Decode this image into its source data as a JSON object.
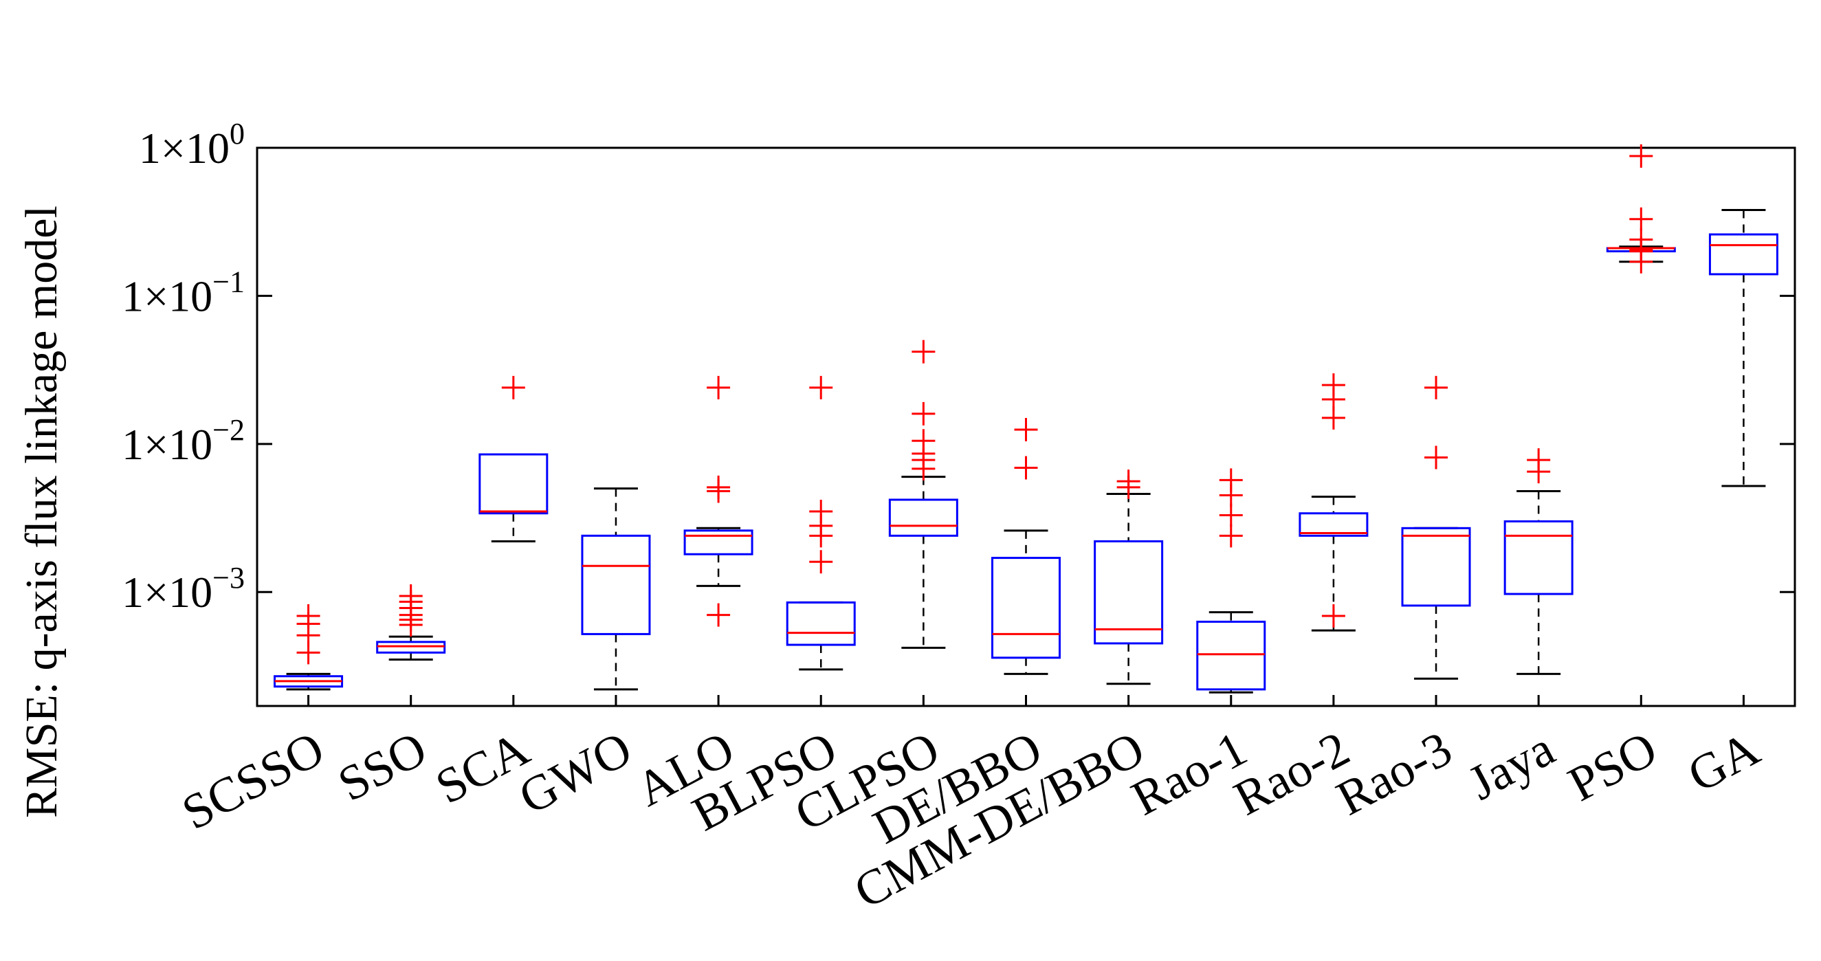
{
  "chart_data": {
    "type": "boxplot",
    "ylabel": "RMSE:   q-axis flux linkage model",
    "yscale": "log",
    "ylim": [
      0.00017,
      1.0
    ],
    "yticks": [
      {
        "value": 0.001,
        "base": "1×10",
        "exp": "−3"
      },
      {
        "value": 0.01,
        "base": "1×10",
        "exp": "−2"
      },
      {
        "value": 0.1,
        "base": "1×10",
        "exp": "−1"
      },
      {
        "value": 1.0,
        "base": "1×10",
        "exp": "0"
      }
    ],
    "colors": {
      "box": "#0000ff",
      "median": "#ff0000",
      "whisker": "#000000",
      "outlier": "#ff0000",
      "axis": "#000000"
    },
    "categories": [
      "SCSSO",
      "SSO",
      "SCA",
      "GWO",
      "ALO",
      "BLPSO",
      "CLPSO",
      "DE/BBO",
      "CMM-DE/BBO",
      "Rao-1",
      "Rao-2",
      "Rao-3",
      "Jaya",
      "PSO",
      "GA"
    ],
    "boxes": [
      {
        "name": "SCSSO",
        "low": 0.00022,
        "q1": 0.00023,
        "median": 0.00025,
        "q3": 0.00027,
        "high": 0.00028,
        "outliers": [
          0.00039,
          0.00051,
          0.00061,
          0.00069
        ]
      },
      {
        "name": "SSO",
        "low": 0.00035,
        "q1": 0.00039,
        "median": 0.00043,
        "q3": 0.00046,
        "high": 0.0005,
        "outliers": [
          0.0006,
          0.00065,
          0.0007,
          0.00078,
          0.00086,
          0.00094
        ]
      },
      {
        "name": "SCA",
        "low": 0.0022,
        "q1": 0.0034,
        "median": 0.0035,
        "q3": 0.0085,
        "high": 0.0085,
        "outliers": [
          0.024
        ]
      },
      {
        "name": "GWO",
        "low": 0.00022,
        "q1": 0.00052,
        "median": 0.0015,
        "q3": 0.0024,
        "high": 0.005,
        "outliers": []
      },
      {
        "name": "ALO",
        "low": 0.0011,
        "q1": 0.0018,
        "median": 0.0024,
        "q3": 0.0026,
        "high": 0.0027,
        "outliers": [
          0.0007,
          0.0048,
          0.0051,
          0.024
        ]
      },
      {
        "name": "BLPSO",
        "low": 0.0003,
        "q1": 0.00044,
        "median": 0.00053,
        "q3": 0.00085,
        "high": 0.00085,
        "outliers": [
          0.0016,
          0.0024,
          0.0028,
          0.0035,
          0.024
        ]
      },
      {
        "name": "CLPSO",
        "low": 0.00042,
        "q1": 0.0024,
        "median": 0.0028,
        "q3": 0.0042,
        "high": 0.006,
        "outliers": [
          0.0068,
          0.0078,
          0.0086,
          0.0105,
          0.016,
          0.042
        ]
      },
      {
        "name": "DE/BBO",
        "low": 0.00028,
        "q1": 0.00036,
        "median": 0.00052,
        "q3": 0.0017,
        "high": 0.0026,
        "outliers": [
          0.0069,
          0.0125
        ]
      },
      {
        "name": "CMM-DE/BBO",
        "low": 0.00024,
        "q1": 0.00045,
        "median": 0.00056,
        "q3": 0.0022,
        "high": 0.0046,
        "outliers": [
          0.0051,
          0.0056
        ]
      },
      {
        "name": "Rao-1",
        "low": 0.00021,
        "q1": 0.00022,
        "median": 0.00038,
        "q3": 0.00063,
        "high": 0.00073,
        "outliers": [
          0.0024,
          0.0033,
          0.0045,
          0.0057
        ]
      },
      {
        "name": "Rao-2",
        "low": 0.00055,
        "q1": 0.0024,
        "median": 0.0025,
        "q3": 0.0034,
        "high": 0.0044,
        "outliers": [
          0.00069,
          0.015,
          0.02,
          0.025
        ]
      },
      {
        "name": "Rao-3",
        "low": 0.00026,
        "q1": 0.00081,
        "median": 0.0024,
        "q3": 0.0027,
        "high": 0.0027,
        "outliers": [
          0.0081,
          0.024
        ]
      },
      {
        "name": "Jaya",
        "low": 0.00028,
        "q1": 0.00097,
        "median": 0.0024,
        "q3": 0.003,
        "high": 0.0048,
        "outliers": [
          0.0065,
          0.0078
        ]
      },
      {
        "name": "PSO",
        "low": 0.17,
        "q1": 0.2,
        "median": 0.21,
        "q3": 0.21,
        "high": 0.215,
        "outliers": [
          0.17,
          0.2,
          0.205,
          0.21,
          0.24,
          0.33,
          0.88
        ]
      },
      {
        "name": "GA",
        "low": 0.0052,
        "q1": 0.14,
        "median": 0.22,
        "q3": 0.26,
        "high": 0.38,
        "outliers": []
      }
    ]
  }
}
